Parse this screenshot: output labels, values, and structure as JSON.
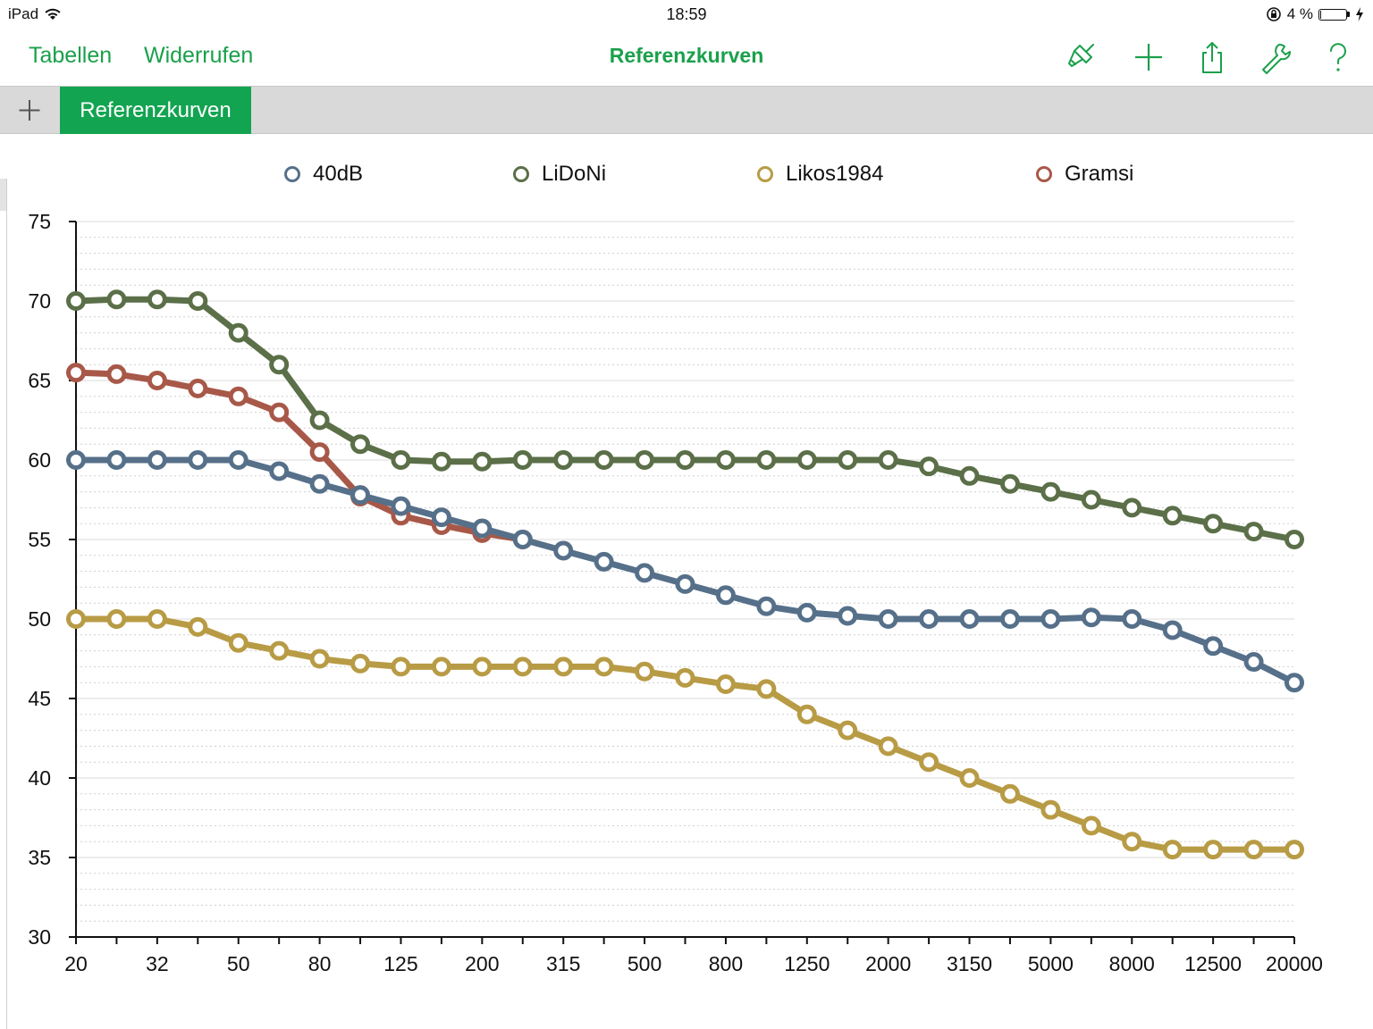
{
  "status_bar": {
    "device": "iPad",
    "time": "18:59",
    "battery": "4 %",
    "battery_level": 0.04
  },
  "toolbar": {
    "tables_label": "Tabellen",
    "undo_label": "Widerrufen",
    "title": "Referenzkurven",
    "icons": [
      "format-brush-icon",
      "plus-icon",
      "share-icon",
      "wrench-icon",
      "help-icon"
    ]
  },
  "tabs": {
    "add_icon": "plus-icon",
    "active_label": "Referenzkurven"
  },
  "colors": {
    "accent": "#1aa04b",
    "tab_active": "#13a451",
    "series_40dB": "#56708a",
    "series_LiDoNi": "#5b6f48",
    "series_Likos1984": "#b89b45",
    "series_Gramsi": "#a85848"
  },
  "chart_data": {
    "type": "line",
    "grid": true,
    "legend_position": "top",
    "x": [
      "20",
      "25",
      "32",
      "40",
      "50",
      "63",
      "80",
      "100",
      "125",
      "160",
      "200",
      "250",
      "315",
      "400",
      "500",
      "630",
      "800",
      "1000",
      "1250",
      "1600",
      "2000",
      "2500",
      "3150",
      "4000",
      "5000",
      "6300",
      "8000",
      "10000",
      "12500",
      "16000",
      "20000"
    ],
    "x_tick_labels": [
      "20",
      "32",
      "50",
      "80",
      "125",
      "200",
      "315",
      "500",
      "800",
      "1250",
      "2000",
      "3150",
      "5000",
      "8000",
      "12500",
      "20000"
    ],
    "y_tick_labels": [
      "75",
      "70",
      "65",
      "60",
      "55",
      "50",
      "45",
      "40",
      "35",
      "30"
    ],
    "ylim": [
      30,
      75
    ],
    "series": [
      {
        "name": "40dB",
        "color": "#56708a",
        "values": [
          60,
          60,
          60,
          60,
          60,
          59.3,
          58.5,
          57.8,
          57.1,
          56.4,
          55.7,
          55,
          54.3,
          53.6,
          52.9,
          52.2,
          51.5,
          50.8,
          50.4,
          50.2,
          50,
          50,
          50,
          50,
          50,
          50.1,
          50,
          49.3,
          48.3,
          47.3,
          46
        ]
      },
      {
        "name": "LiDoNi",
        "color": "#5b6f48",
        "values": [
          70,
          70.1,
          70.1,
          70,
          68,
          66,
          62.5,
          61,
          60,
          59.9,
          59.9,
          60,
          60,
          60,
          60,
          60,
          60,
          60,
          60,
          60,
          60,
          59.6,
          59,
          58.5,
          58,
          57.5,
          57,
          56.5,
          56,
          55.5,
          55
        ]
      },
      {
        "name": "Likos1984",
        "color": "#b89b45",
        "values": [
          50,
          50,
          50,
          49.5,
          48.5,
          48,
          47.5,
          47.2,
          47,
          47,
          47,
          47,
          47,
          47,
          46.7,
          46.3,
          45.9,
          45.6,
          44,
          43,
          42,
          41,
          40,
          39,
          38,
          37,
          36,
          35.5,
          35.5,
          35.5,
          35.5
        ]
      },
      {
        "name": "Gramsi",
        "color": "#a85848",
        "values": [
          65.5,
          65.4,
          65,
          64.5,
          64,
          63,
          60.5,
          57.7,
          56.5,
          55.9,
          55.4,
          55,
          null,
          null,
          null,
          null,
          null,
          null,
          null,
          null,
          null,
          null,
          null,
          null,
          null,
          null,
          null,
          null,
          null,
          null,
          null
        ]
      }
    ]
  }
}
